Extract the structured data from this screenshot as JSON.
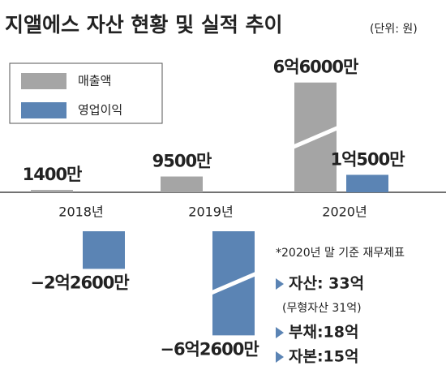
{
  "chart_data": {
    "type": "bar",
    "title": "지앨에스 자산 현황 및 실적 추이",
    "subtitle": "(단위: 원)",
    "categories": [
      "2018년",
      "2019년",
      "2020년"
    ],
    "series": [
      {
        "name": "매출액",
        "color": "#a5a5a5",
        "values": [
          14000000,
          95000000,
          660000000
        ],
        "value_labels": [
          "1400만",
          "9500만",
          "6억6000만"
        ]
      },
      {
        "name": "영업이익",
        "color": "#5b84b4",
        "values": [
          -226000000,
          -626000000,
          105000000
        ],
        "value_labels": [
          "−2억2600만",
          "−6억2600만",
          "1억500만"
        ]
      }
    ],
    "annotations": [
      "*2020년 말 기준 재무제표",
      "자산: 33억",
      "(무형자산 31억)",
      "부채:18억",
      "자본:15억"
    ]
  }
}
